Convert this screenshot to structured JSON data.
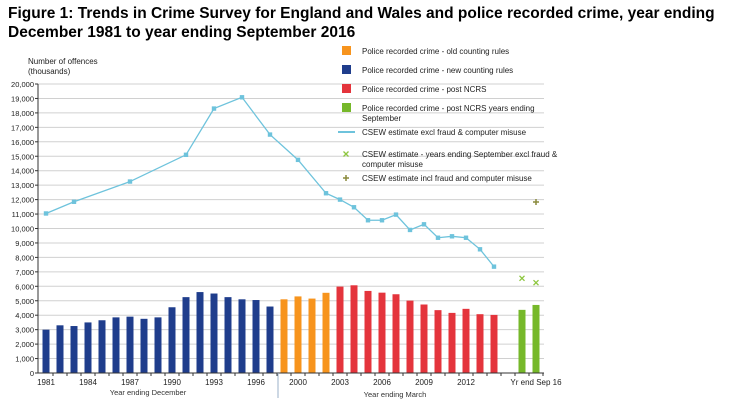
{
  "chart_data": {
    "type": "bar",
    "title": "Figure 1: Trends in Crime Survey for England and Wales and police recorded crime, year ending December 1981 to year ending September 2016",
    "ylabel": "Number of offences (thousands)",
    "ylabel_lines": [
      "Number of offences",
      "(thousands)"
    ],
    "ylim": [
      0,
      20000
    ],
    "yticks": [
      0,
      1000,
      2000,
      3000,
      4000,
      5000,
      6000,
      7000,
      8000,
      9000,
      10000,
      11000,
      12000,
      13000,
      14000,
      15000,
      16000,
      17000,
      18000,
      19000,
      20000
    ],
    "grid": true,
    "legend_placement": "top-right",
    "xlabel_groups": [
      "Year ending December",
      "Year ending March"
    ],
    "xtick_labels": [
      "1981",
      "1984",
      "1987",
      "1990",
      "1993",
      "1996",
      "2000",
      "2003",
      "2006",
      "2009",
      "2012",
      "Yr end Sep 16"
    ],
    "categories": [
      "1981",
      "1982",
      "1983",
      "1984",
      "1985",
      "1986",
      "1987",
      "1988",
      "1989",
      "1990",
      "1991",
      "1992",
      "1993",
      "1994",
      "1995",
      "1996",
      "1997",
      "1999",
      "2000",
      "2001",
      "2002",
      "2003",
      "2004",
      "2005",
      "2006",
      "2007",
      "2008",
      "2009",
      "2010",
      "2011",
      "2012",
      "2013",
      "2014",
      "",
      "Yr end Sep 15",
      "Yr end Sep 16"
    ],
    "series": [
      {
        "name": "Police recorded crime - old counting rules",
        "type": "bar",
        "color": "#f7941d",
        "values": [
          null,
          null,
          null,
          null,
          null,
          null,
          null,
          null,
          null,
          null,
          null,
          null,
          null,
          null,
          null,
          null,
          null,
          5100,
          5300,
          5150,
          5550,
          null,
          null,
          null,
          null,
          null,
          null,
          null,
          null,
          null,
          null,
          null,
          null,
          null,
          null,
          null
        ]
      },
      {
        "name": "Police recorded crime - new counting rules",
        "type": "bar",
        "color": "#1f3d8c",
        "values": [
          3000,
          3300,
          3250,
          3500,
          3650,
          3850,
          3900,
          3750,
          3850,
          4550,
          5250,
          5600,
          5500,
          5250,
          5100,
          5050,
          4600,
          null,
          null,
          null,
          null,
          null,
          null,
          null,
          null,
          null,
          null,
          null,
          null,
          null,
          null,
          null,
          null,
          null,
          null,
          null
        ]
      },
      {
        "name": "Police recorded crime - post NCRS",
        "type": "bar",
        "color": "#e4343c",
        "values": [
          null,
          null,
          null,
          null,
          null,
          null,
          null,
          null,
          null,
          null,
          null,
          null,
          null,
          null,
          null,
          null,
          null,
          null,
          null,
          null,
          null,
          5980,
          6070,
          5680,
          5560,
          5450,
          5010,
          4740,
          4350,
          4160,
          4440,
          4070,
          4020,
          null,
          null,
          null
        ]
      },
      {
        "name": "Police recorded crime - post NCRS years ending September",
        "type": "bar",
        "color": "#76b82a",
        "values": [
          null,
          null,
          null,
          null,
          null,
          null,
          null,
          null,
          null,
          null,
          null,
          null,
          null,
          null,
          null,
          null,
          null,
          null,
          null,
          null,
          null,
          null,
          null,
          null,
          null,
          null,
          null,
          null,
          null,
          null,
          null,
          null,
          null,
          null,
          4370,
          4710
        ]
      },
      {
        "name": "CSEW estimate excl fraud & computer misuse",
        "type": "line",
        "color": "#6ec3dc",
        "points": [
          [
            "1981",
            11040
          ],
          [
            "1983",
            11850
          ],
          [
            "1987",
            13250
          ],
          [
            "1991",
            15100
          ],
          [
            "1993",
            18300
          ],
          [
            "1995",
            19080
          ],
          [
            "1997",
            16500
          ],
          [
            "2000",
            14750
          ],
          [
            "2002",
            12440
          ],
          [
            "2003",
            12000
          ],
          [
            "2004",
            11470
          ],
          [
            "2005",
            10570
          ],
          [
            "2006",
            10570
          ],
          [
            "2007",
            10960
          ],
          [
            "2008",
            9900
          ],
          [
            "2009",
            10290
          ],
          [
            "2010",
            9360
          ],
          [
            "2011",
            9460
          ],
          [
            "2012",
            9360
          ],
          [
            "2013",
            8560
          ],
          [
            "2014",
            7360
          ]
        ]
      },
      {
        "name": "CSEW estimate - years ending September excl fraud & computer misuse",
        "type": "marker-x",
        "color": "#8dc63f",
        "points": [
          [
            "Yr end Sep 15",
            6550
          ],
          [
            "Yr end Sep 16",
            6250
          ]
        ]
      },
      {
        "name": "CSEW estimate incl fraud and computer misuse",
        "type": "marker-plus",
        "color": "#8a8a3c",
        "points": [
          [
            "Yr end Sep 16",
            11830
          ]
        ]
      }
    ]
  }
}
